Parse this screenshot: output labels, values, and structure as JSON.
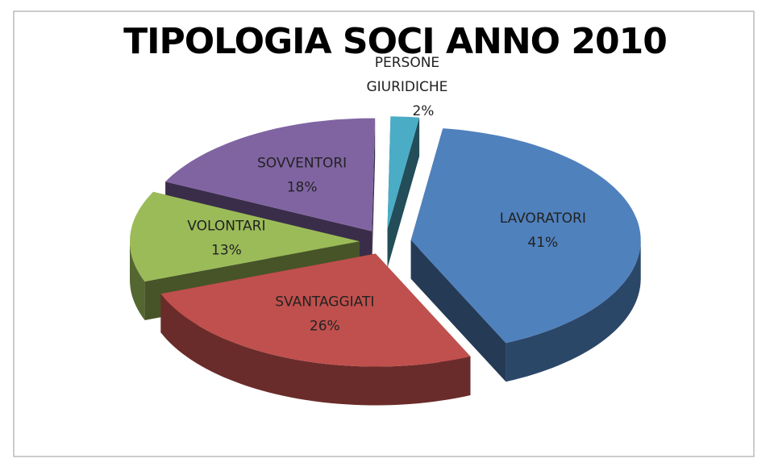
{
  "chart_data": {
    "type": "pie",
    "title": "TIPOLOGIA SOCI ANNO 2010",
    "categories": [
      "LAVORATORI",
      "SVANTAGGIATI",
      "VOLONTARI",
      "SOVVENTORI",
      "PERSONE GIURIDICHE"
    ],
    "values": [
      41,
      26,
      13,
      18,
      2
    ],
    "value_labels": [
      "41%",
      "26%",
      "13%",
      "18%",
      "2%"
    ],
    "colors": [
      "#4f81bd",
      "#c0504d",
      "#9bbb59",
      "#8064a2",
      "#4bacc6"
    ]
  }
}
